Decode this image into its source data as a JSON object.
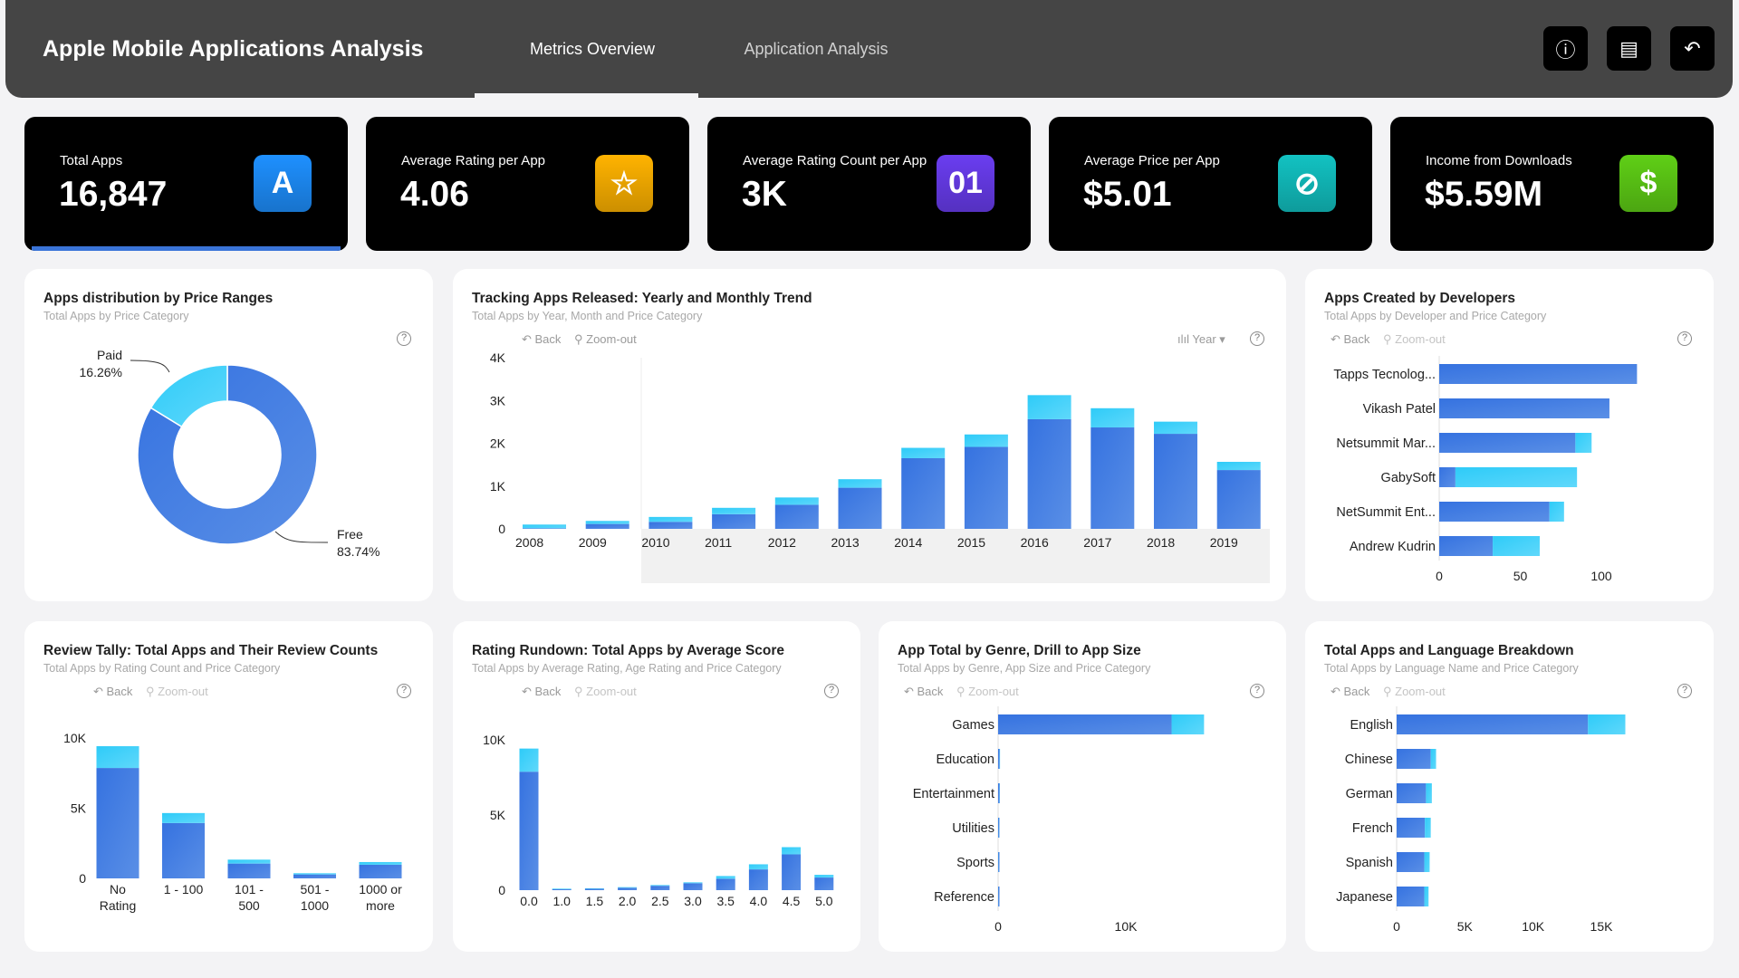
{
  "header": {
    "title": "Apple Mobile Applications Analysis",
    "tabs": [
      {
        "label": "Metrics Overview",
        "active": true
      },
      {
        "label": "Application Analysis",
        "active": false
      }
    ],
    "buttons": [
      {
        "icon": "info-icon",
        "glyph": "ⓘ"
      },
      {
        "icon": "report-icon",
        "glyph": "▤"
      },
      {
        "icon": "undo-icon",
        "glyph": "↶"
      }
    ]
  },
  "kpis": [
    {
      "label": "Total Apps",
      "value": "16,847",
      "icon": "app-store-icon",
      "glyph": "A",
      "color": "#1e90ff"
    },
    {
      "label": "Average Rating per App",
      "value": "4.06",
      "icon": "star-icon",
      "glyph": "☆",
      "color": "#ffb300"
    },
    {
      "label": "Average Rating Count per App",
      "value": "3K",
      "icon": "counter-icon",
      "glyph": "01",
      "color": "#6a3df0"
    },
    {
      "label": "Average Price per App",
      "value": "$5.01",
      "icon": "price-tag-icon",
      "glyph": "⊘",
      "color": "#12c2c2"
    },
    {
      "label": "Income from Downloads",
      "value": "$5.59M",
      "icon": "dollar-icon",
      "glyph": "$",
      "color": "#5fcf16"
    }
  ],
  "colors": {
    "free": "#3b7ddd",
    "paid": "#38cdf7"
  },
  "toolbar": {
    "back": "Back",
    "zoom_out": "Zoom-out",
    "year": "Year ▾",
    "help": "?"
  },
  "chart_data": [
    {
      "id": "price",
      "type": "pie",
      "title": "Apps distribution by Price Ranges",
      "subtitle": "Total Apps by Price Category",
      "slices": [
        {
          "name": "Free",
          "value": 83.74,
          "label": "83.74%"
        },
        {
          "name": "Paid",
          "value": 16.26,
          "label": "16.26%"
        }
      ]
    },
    {
      "id": "years",
      "type": "bar",
      "title": "Tracking Apps Released: Yearly and Monthly Trend",
      "subtitle": "Total Apps by Year, Month and Price Category",
      "categories": [
        "2008",
        "2009",
        "2010",
        "2011",
        "2012",
        "2013",
        "2014",
        "2015",
        "2016",
        "2017",
        "2018",
        "2019"
      ],
      "series": [
        {
          "name": "Free",
          "values": [
            15,
            114,
            164,
            342,
            562,
            961,
            1651,
            1915,
            2562,
            2370,
            2221,
            1374
          ]
        },
        {
          "name": "Paid",
          "values": [
            85,
            71,
            114,
            149,
            171,
            199,
            242,
            291,
            563,
            449,
            284,
            192
          ]
        }
      ],
      "yticks": [
        "0",
        "1K",
        "2K",
        "3K",
        "4K"
      ],
      "ylim": [
        0,
        4000
      ]
    },
    {
      "id": "devs",
      "type": "bar",
      "orientation": "horizontal",
      "title": "Apps Created by Developers",
      "subtitle": "Total Apps by Developer and Price Category",
      "categories": [
        "Tapps Tecnolog...",
        "Vikash Patel",
        "Netsummit Mar...",
        "GabySoft",
        "NetSummit Ent...",
        "Andrew Kudrin"
      ],
      "series": [
        {
          "name": "Free",
          "values": [
            122,
            105,
            84,
            10,
            68,
            33
          ]
        },
        {
          "name": "Paid",
          "values": [
            0,
            0,
            10,
            75,
            9,
            29
          ]
        }
      ],
      "xticks": [
        "0",
        "50",
        "100"
      ],
      "xtick_values": [
        0,
        50,
        100
      ]
    },
    {
      "id": "reviews",
      "type": "bar",
      "title": "Review Tally: Total Apps and Their Review Counts",
      "subtitle": "Total Apps by Rating Count and Price Category",
      "categories": [
        [
          "No",
          "Rating"
        ],
        [
          "1 - 100"
        ],
        [
          "101 -",
          "500"
        ],
        [
          "501 -",
          "1000"
        ],
        [
          "1000 or",
          "more"
        ]
      ],
      "series": [
        {
          "name": "Free",
          "values": [
            7866,
            3944,
            1056,
            280,
            970
          ]
        },
        {
          "name": "Paid",
          "values": [
            1552,
            711,
            280,
            86,
            194
          ]
        }
      ],
      "yticks": [
        "0",
        "5K",
        "10K"
      ],
      "ylim": [
        0,
        10000
      ]
    },
    {
      "id": "ratings",
      "type": "bar",
      "title": "Rating Rundown: Total Apps by Average Score",
      "subtitle": "Total Apps by Average Rating, Age Rating and Price Category",
      "categories": [
        "0.0",
        "1.0",
        "1.5",
        "2.0",
        "2.5",
        "3.0",
        "3.5",
        "4.0",
        "4.5",
        "5.0"
      ],
      "series": [
        {
          "name": "Free",
          "values": [
            7880,
            60,
            90,
            160,
            290,
            460,
            760,
            1380,
            2380,
            840
          ]
        },
        {
          "name": "Paid",
          "values": [
            1540,
            40,
            30,
            40,
            50,
            60,
            180,
            340,
            480,
            180
          ]
        }
      ],
      "yticks": [
        "0",
        "5K",
        "10K"
      ],
      "ylim": [
        0,
        10000
      ]
    },
    {
      "id": "genres",
      "type": "bar",
      "orientation": "horizontal",
      "title": "App Total by Genre, Drill to App Size",
      "subtitle": "Total Apps by Genre, App Size and Price Category",
      "categories": [
        "Games",
        "Education",
        "Entertainment",
        "Utilities",
        "Sports",
        "Reference"
      ],
      "series": [
        {
          "name": "Free",
          "values": [
            13583,
            120,
            120,
            60,
            45,
            40
          ]
        },
        {
          "name": "Paid",
          "values": [
            2542,
            30,
            20,
            20,
            15,
            10
          ]
        }
      ],
      "xticks": [
        "0",
        "10K"
      ],
      "xtick_values": [
        0,
        10000
      ]
    },
    {
      "id": "languages",
      "type": "bar",
      "orientation": "horizontal",
      "title": "Total Apps and Language Breakdown",
      "subtitle": "Total Apps by Language Name and Price Category",
      "categories": [
        "English",
        "Chinese",
        "German",
        "French",
        "Spanish",
        "Japanese"
      ],
      "series": [
        {
          "name": "Free",
          "values": [
            14023,
            2500,
            2150,
            2070,
            2030,
            2030
          ]
        },
        {
          "name": "Paid",
          "values": [
            2735,
            390,
            430,
            430,
            390,
            310
          ]
        }
      ],
      "xticks": [
        "0",
        "5K",
        "10K",
        "15K"
      ],
      "xtick_values": [
        0,
        5000,
        10000,
        15000
      ]
    }
  ]
}
